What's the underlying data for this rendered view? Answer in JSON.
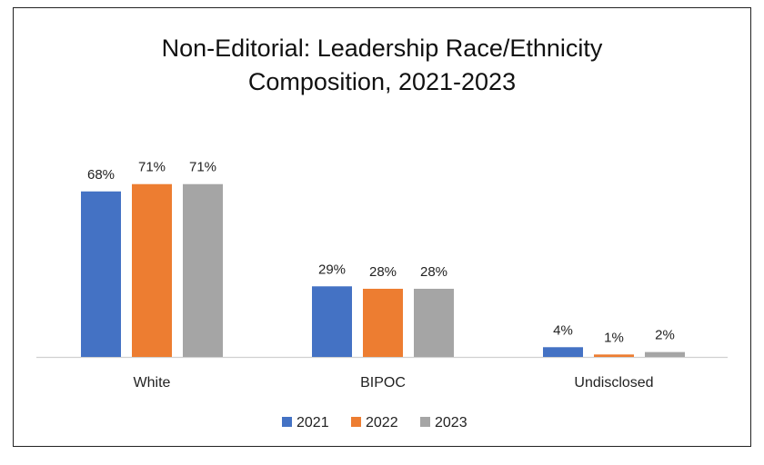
{
  "chart_data": {
    "type": "bar",
    "title_line1": "Non-Editorial: Leadership Race/Ethnicity",
    "title_line2": "Composition, 2021-2023",
    "categories": [
      "White",
      "BIPOC",
      "Undisclosed"
    ],
    "series": [
      {
        "name": "2021",
        "color": "#4472C4",
        "values": [
          68,
          29,
          4
        ],
        "labels": [
          "68%",
          "29%",
          "4%"
        ]
      },
      {
        "name": "2022",
        "color": "#ED7D31",
        "values": [
          71,
          28,
          1
        ],
        "labels": [
          "71%",
          "28%",
          "1%"
        ]
      },
      {
        "name": "2023",
        "color": "#A5A5A5",
        "values": [
          71,
          28,
          2
        ],
        "labels": [
          "71%",
          "28%",
          "2%"
        ]
      }
    ],
    "ylim": [
      0,
      80
    ],
    "legend_position": "bottom",
    "grid": false
  }
}
